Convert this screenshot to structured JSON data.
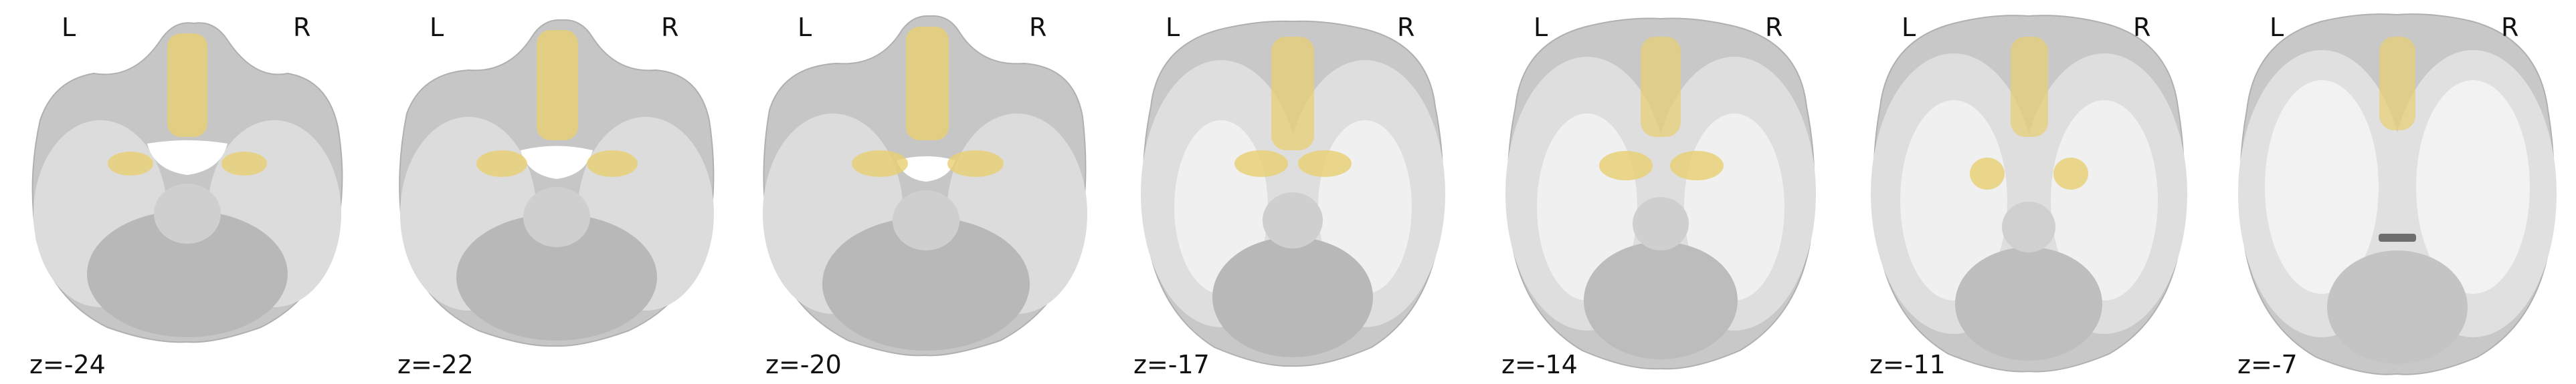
{
  "orientation": {
    "left": "L",
    "right": "R"
  },
  "slices": [
    {
      "label": "z=-24"
    },
    {
      "label": "z=-22"
    },
    {
      "label": "z=-20"
    },
    {
      "label": "z=-17"
    },
    {
      "label": "z=-14"
    },
    {
      "label": "z=-11"
    },
    {
      "label": "z=-7"
    }
  ],
  "colors": {
    "background": "#ffffff",
    "brain_outer": "#c4c4c4",
    "brain_inner": "#dedede",
    "white_matter": "#f0f0f0",
    "cerebellum": "#b3b3b3",
    "overlay": "#e8cf72"
  }
}
